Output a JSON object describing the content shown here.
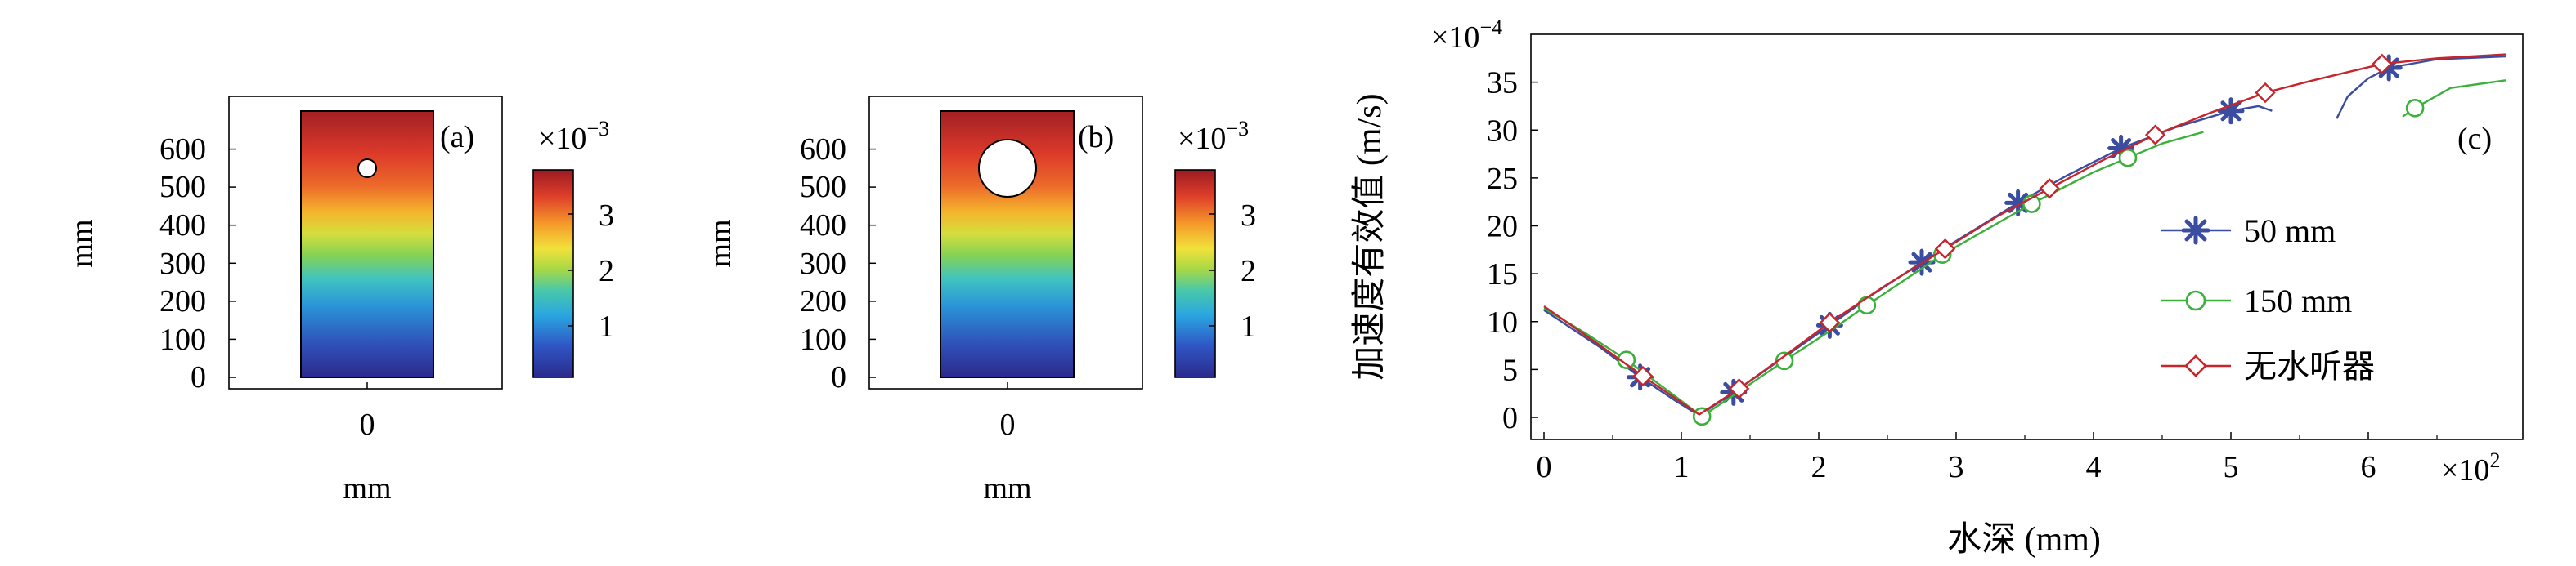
{
  "colors": {
    "series_50mm": "#3a4da0",
    "series_150mm": "#3bb03b",
    "series_none": "#c8242b",
    "axis": "#000000",
    "colormap": [
      "#2b2a8c",
      "#2f55c4",
      "#2aa6e0",
      "#49c9a9",
      "#a6d845",
      "#f1e23a",
      "#f59a2a",
      "#e0402a",
      "#9b1a22"
    ]
  },
  "chart_data": [
    {
      "type": "heatmap",
      "panel_label": "(a)",
      "xlabel": "mm",
      "ylabel": "mm",
      "x_ticks": [
        "0"
      ],
      "y_ticks": [
        "0",
        "100",
        "200",
        "300",
        "400",
        "500",
        "600"
      ],
      "ylim": [
        0,
        700
      ],
      "hole": {
        "center_y_mm": 545,
        "diameter_mm": 50
      },
      "colorbar": {
        "multiplier": "×10",
        "exponent": "−3",
        "ticks": [
          "1",
          "2",
          "3"
        ],
        "range": [
          0,
          3.5
        ]
      }
    },
    {
      "type": "heatmap",
      "panel_label": "(b)",
      "xlabel": "mm",
      "ylabel": "mm",
      "x_ticks": [
        "0"
      ],
      "y_ticks": [
        "0",
        "100",
        "200",
        "300",
        "400",
        "500",
        "600"
      ],
      "ylim": [
        0,
        700
      ],
      "hole": {
        "center_y_mm": 545,
        "diameter_mm": 150
      },
      "colorbar": {
        "multiplier": "×10",
        "exponent": "−3",
        "ticks": [
          "1",
          "2",
          "3"
        ],
        "range": [
          0,
          3.5
        ]
      }
    },
    {
      "type": "line",
      "panel_label": "(c)",
      "xlabel": "水深 (mm)",
      "ylabel": "加速度有效值 (m/s)",
      "x_multiplier": "×10",
      "x_exponent": "2",
      "y_multiplier": "×10",
      "y_exponent": "−4",
      "xlim": [
        0,
        7
      ],
      "ylim": [
        0,
        40
      ],
      "x_ticks": [
        "0",
        "1",
        "2",
        "3",
        "4",
        "5",
        "6"
      ],
      "y_ticks": [
        "0",
        "5",
        "10",
        "15",
        "20",
        "25",
        "30",
        "35"
      ],
      "legend_position": "center-right",
      "series": [
        {
          "name": "50 mm",
          "marker": "asterisk",
          "segments": [
            [
              [
                0,
                11.2
              ],
              [
                0.4,
                7.4
              ],
              [
                0.7,
                4.2
              ],
              [
                0.95,
                1.8
              ],
              [
                1.13,
                0.2
              ],
              [
                1.4,
                2.8
              ],
              [
                1.75,
                6.3
              ],
              [
                2.08,
                9.6
              ],
              [
                2.4,
                12.9
              ],
              [
                2.75,
                16.2
              ],
              [
                3.1,
                19.3
              ],
              [
                3.45,
                22.4
              ],
              [
                3.8,
                25.2
              ],
              [
                4.2,
                28.1
              ],
              [
                4.6,
                30.3
              ],
              [
                5.0,
                32.0
              ],
              [
                5.2,
                32.5
              ],
              [
                5.3,
                32.0
              ]
            ],
            [
              [
                5.77,
                31.2
              ],
              [
                5.85,
                33.5
              ],
              [
                6.0,
                35.4
              ],
              [
                6.15,
                36.5
              ],
              [
                6.5,
                37.4
              ],
              [
                7.0,
                37.7
              ]
            ]
          ],
          "markers_x": [
            0.7,
            1.38,
            2.08,
            2.75,
            3.45,
            4.2,
            5.0,
            6.15
          ]
        },
        {
          "name": "150 mm",
          "marker": "circle",
          "segments": [
            [
              [
                0,
                11.4
              ],
              [
                0.3,
                8.8
              ],
              [
                0.6,
                6.0
              ],
              [
                0.9,
                2.8
              ],
              [
                1.15,
                0.1
              ],
              [
                1.4,
                2.5
              ],
              [
                1.75,
                5.9
              ],
              [
                2.1,
                9.2
              ],
              [
                2.35,
                11.7
              ],
              [
                2.9,
                17.0
              ],
              [
                3.55,
                22.3
              ],
              [
                4.0,
                25.6
              ],
              [
                4.25,
                27.1
              ],
              [
                4.5,
                28.6
              ],
              [
                4.8,
                29.8
              ]
            ],
            [
              [
                6.25,
                31.4
              ],
              [
                6.34,
                32.3
              ],
              [
                6.6,
                34.4
              ],
              [
                7.0,
                35.2
              ]
            ]
          ],
          "markers_x": [
            0.6,
            1.15,
            1.75,
            2.35,
            2.9,
            3.55,
            4.25,
            6.34
          ]
        },
        {
          "name": "无水听器",
          "marker": "diamond",
          "segments": [
            [
              [
                0,
                11.6
              ],
              [
                0.4,
                7.6
              ],
              [
                0.72,
                4.3
              ],
              [
                1.13,
                0.3
              ],
              [
                1.42,
                3.0
              ],
              [
                1.75,
                6.4
              ],
              [
                2.08,
                9.9
              ],
              [
                2.5,
                13.9
              ],
              [
                2.92,
                17.6
              ],
              [
                3.3,
                21.0
              ],
              [
                3.68,
                23.9
              ],
              [
                4.06,
                26.8
              ],
              [
                4.45,
                29.5
              ],
              [
                4.85,
                31.8
              ],
              [
                5.25,
                33.9
              ],
              [
                5.6,
                35.2
              ],
              [
                6.1,
                36.9
              ],
              [
                6.5,
                37.5
              ],
              [
                7.0,
                37.9
              ]
            ]
          ],
          "markers_x": [
            0.72,
            1.42,
            2.08,
            2.92,
            3.68,
            4.45,
            5.25,
            6.1
          ]
        }
      ]
    }
  ]
}
